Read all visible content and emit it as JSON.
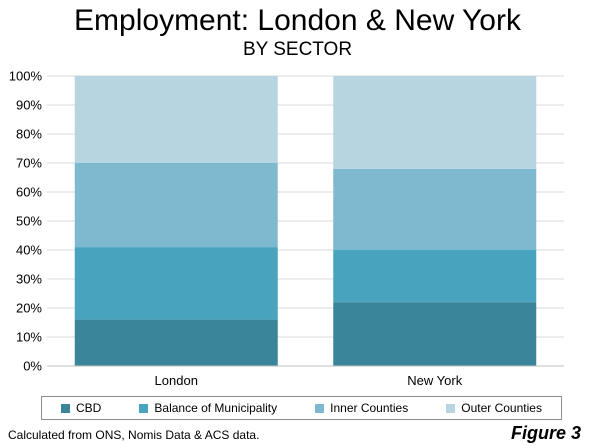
{
  "figure_label": "Figure 3",
  "source": "Calculated from ONS, Nomis Data & ACS data.",
  "chart_data": {
    "type": "bar",
    "stacked": true,
    "title": "Employment: London & New York",
    "subtitle": "BY SECTOR",
    "categories": [
      "London",
      "New York"
    ],
    "series": [
      {
        "name": "CBD",
        "color": "#3a8599",
        "values": [
          16,
          22
        ]
      },
      {
        "name": "Balance of Municipality",
        "color": "#48a3be",
        "values": [
          25,
          18
        ]
      },
      {
        "name": "Inner Counties",
        "color": "#7fb9d0",
        "values": [
          29,
          28
        ]
      },
      {
        "name": "Outer Counties",
        "color": "#b6d5e1",
        "values": [
          30,
          32
        ]
      }
    ],
    "ylim": [
      0,
      100
    ],
    "yticks": [
      "0%",
      "10%",
      "20%",
      "30%",
      "40%",
      "50%",
      "60%",
      "70%",
      "80%",
      "90%",
      "100%"
    ],
    "grid": true,
    "legend": "bottom"
  }
}
